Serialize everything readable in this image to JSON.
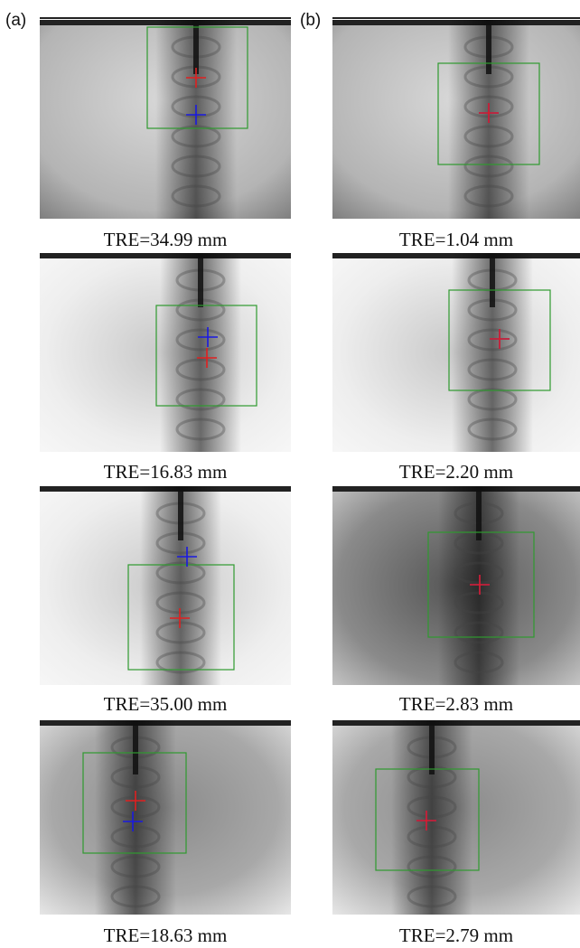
{
  "columns": [
    {
      "label": "(a)",
      "captions": [
        "TRE=34.99 mm",
        "TRE=16.83 mm",
        "TRE=35.00 mm",
        "TRE=18.63 mm"
      ]
    },
    {
      "label": "(b)",
      "captions": [
        "TRE=1.04 mm",
        "TRE=2.20 mm",
        "TRE=2.83 mm",
        "TRE=2.79 mm"
      ]
    }
  ]
}
